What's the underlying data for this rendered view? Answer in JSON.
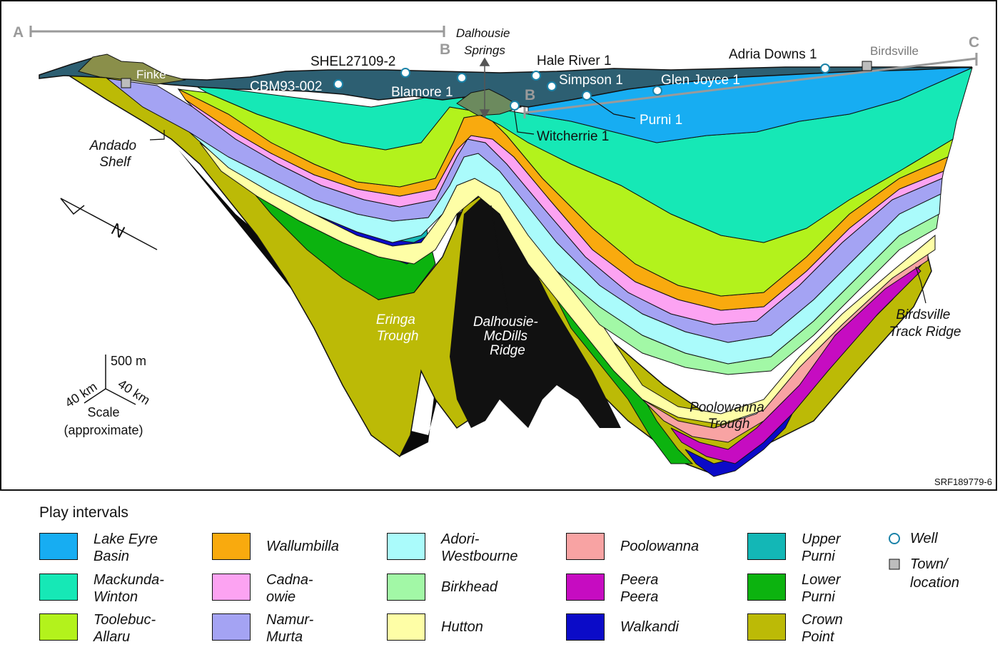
{
  "figure_id": "SRF189779-6",
  "section_end_labels": {
    "a": "A",
    "b_upper": "B",
    "b_lower": "B",
    "c": "C"
  },
  "wells": [
    {
      "key": "shel",
      "name": "SHEL27109-2"
    },
    {
      "key": "cbm",
      "name": "CBM93-002"
    },
    {
      "key": "blamore",
      "name": "Blamore 1"
    },
    {
      "key": "hale",
      "name": "Hale River 1"
    },
    {
      "key": "simpson",
      "name": "Simpson 1"
    },
    {
      "key": "glen",
      "name": "Glen Joyce 1"
    },
    {
      "key": "adria",
      "name": "Adria Downs 1"
    },
    {
      "key": "purni",
      "name": "Purni 1"
    },
    {
      "key": "witcherrie",
      "name": "Witcherrie 1"
    }
  ],
  "towns": [
    {
      "key": "finke",
      "name": "Finke"
    },
    {
      "key": "birdsville",
      "name": "Birdsville"
    }
  ],
  "features": {
    "dalhousie_springs": [
      "Dalhousie",
      "Springs"
    ],
    "andado_shelf": [
      "Andado",
      "Shelf"
    ],
    "eringa_trough": [
      "Eringa",
      "Trough"
    ],
    "dalhousie_ridge": [
      "Dalhousie-",
      "McDills",
      "Ridge"
    ],
    "poolowanna_trough": [
      "Poolowanna",
      "Trough"
    ],
    "birdsville_ridge": [
      "Birdsville",
      "Track Ridge"
    ]
  },
  "north_arrow": {
    "letter": "N"
  },
  "scale": {
    "vertical": "500 m",
    "horizontal_left": "40 km",
    "horizontal_right": "40 km",
    "label": "Scale",
    "note": "(approximate)"
  },
  "legend": {
    "title": "Play intervals",
    "intervals": [
      {
        "key": "lake-eyre",
        "lines": [
          "Lake Eyre",
          "Basin"
        ],
        "color": "#17adf2"
      },
      {
        "key": "mackunda",
        "lines": [
          "Mackunda-",
          "Winton"
        ],
        "color": "#16e8b6"
      },
      {
        "key": "toolebuc",
        "lines": [
          "Toolebuc-",
          "Allaru"
        ],
        "color": "#b3f21c"
      },
      {
        "key": "wallumbilla",
        "lines": [
          "Wallumbilla"
        ],
        "color": "#f9aa0e"
      },
      {
        "key": "cadnaowie",
        "lines": [
          "Cadna-",
          "owie"
        ],
        "color": "#fca3f2"
      },
      {
        "key": "namur",
        "lines": [
          "Namur-",
          "Murta"
        ],
        "color": "#a4a3f3"
      },
      {
        "key": "adori",
        "lines": [
          "Adori-",
          "Westbourne"
        ],
        "color": "#aafbfb"
      },
      {
        "key": "birkhead",
        "lines": [
          "Birkhead"
        ],
        "color": "#a2f8a6"
      },
      {
        "key": "hutton",
        "lines": [
          "Hutton"
        ],
        "color": "#fefea6"
      },
      {
        "key": "poolowanna",
        "lines": [
          "Poolowanna"
        ],
        "color": "#f8a3a3"
      },
      {
        "key": "peera",
        "lines": [
          "Peera",
          "Peera"
        ],
        "color": "#c60cc1"
      },
      {
        "key": "walkandi",
        "lines": [
          "Walkandi"
        ],
        "color": "#0b0bc8"
      },
      {
        "key": "upper-purni",
        "lines": [
          "Upper",
          "Purni"
        ],
        "color": "#13b7b6"
      },
      {
        "key": "lower-purni",
        "lines": [
          "Lower",
          "Purni"
        ],
        "color": "#0cb30f"
      },
      {
        "key": "crown-point",
        "lines": [
          "Crown",
          "Point"
        ],
        "color": "#bcba06"
      }
    ],
    "well_label": "Well",
    "town_label": [
      "Town/",
      "location"
    ]
  }
}
